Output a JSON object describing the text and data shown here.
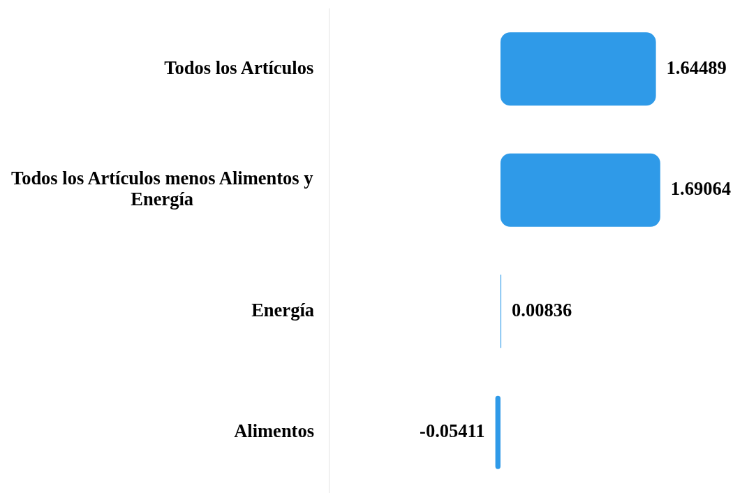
{
  "chart_data": {
    "type": "bar",
    "orientation": "horizontal",
    "categories": [
      "Todos los Artículos",
      "Todos los Artículos menos Alimentos y Energía",
      "Energía",
      "Alimentos"
    ],
    "values": [
      1.64489,
      1.69064,
      0.00836,
      -0.05411
    ],
    "color": "#2f9ae8",
    "data_labels": true,
    "tick_labels": "y"
  }
}
